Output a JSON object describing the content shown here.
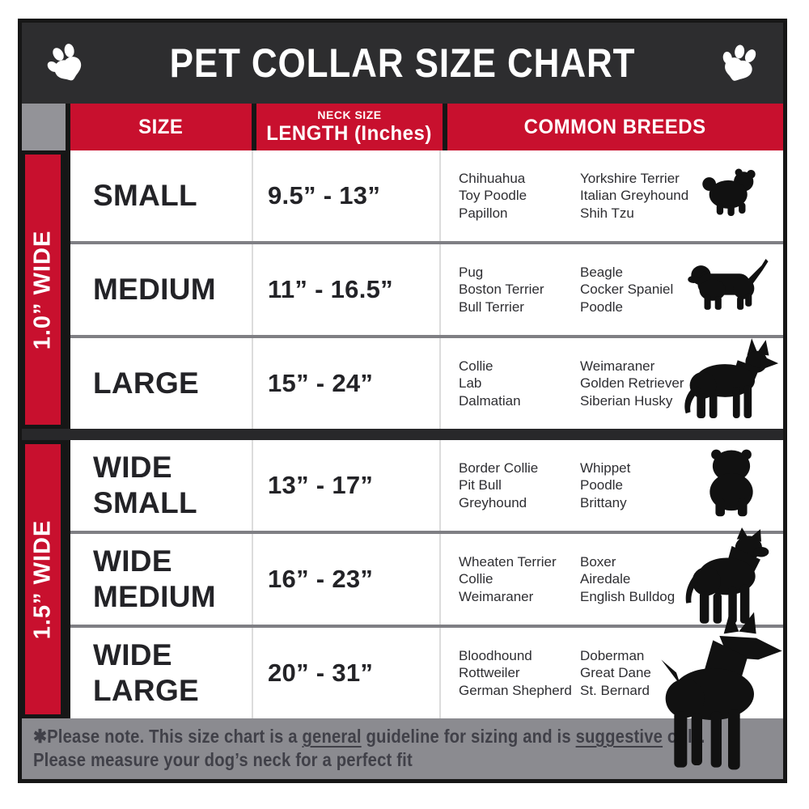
{
  "header": {
    "title": "PET COLLAR SIZE CHART"
  },
  "columns": {
    "size": "SIZE",
    "neck_small": "NECK SIZE",
    "neck_main": "LENGTH (Inches)",
    "breeds": "COMMON BREEDS"
  },
  "colors": {
    "title_bar": "#2d2d2f",
    "accent_red": "#c8102e",
    "corner_gray": "#939398",
    "footer_gray": "#8b8b90",
    "row_separator": "#7f7f84",
    "section_separator": "#28282a",
    "text_dark": "#232327",
    "border_black": "#161616"
  },
  "sections": [
    {
      "id": "1-0-wide",
      "label": "1.0” WIDE",
      "rows": [
        {
          "id": "small",
          "size_lines": [
            "SMALL"
          ],
          "range": "9.5” - 13”",
          "breeds_col1": [
            "Chihuahua",
            "Toy Poodle",
            "Papillon"
          ],
          "breeds_col2": [
            "Yorkshire Terrier",
            "Italian Greyhound",
            "Shih Tzu"
          ],
          "icon": "shih-tzu-dog-icon",
          "symbol": "dog-fluffy",
          "pos": "pos-r1"
        },
        {
          "id": "medium",
          "size_lines": [
            "MEDIUM"
          ],
          "range": "11” - 16.5”",
          "breeds_col1": [
            "Pug",
            "Boston Terrier",
            "Bull Terrier"
          ],
          "breeds_col2": [
            "Beagle",
            "Cocker Spaniel",
            "Poodle"
          ],
          "icon": "dachshund-dog-icon",
          "symbol": "dog-dachshund",
          "pos": "pos-r2"
        },
        {
          "id": "large",
          "size_lines": [
            "LARGE"
          ],
          "range": "15” - 24”",
          "breeds_col1": [
            "Collie",
            "Lab",
            "Dalmatian"
          ],
          "breeds_col2": [
            "Weimaraner",
            "Golden Retriever",
            "Siberian Husky"
          ],
          "icon": "german-shepherd-dog-icon",
          "symbol": "dog-shepherd",
          "pos": "pos-r3"
        }
      ]
    },
    {
      "id": "1-5-wide",
      "label": "1.5” WIDE",
      "rows": [
        {
          "id": "wide-small",
          "size_lines": [
            "WIDE",
            "SMALL"
          ],
          "range": "13” - 17”",
          "breeds_col1": [
            "Border Collie",
            "Pit Bull",
            "Greyhound"
          ],
          "breeds_col2": [
            "Whippet",
            "Poodle",
            "Brittany"
          ],
          "icon": "bulldog-dog-icon",
          "symbol": "dog-bulldog",
          "pos": "pos-r4"
        },
        {
          "id": "wide-medium",
          "size_lines": [
            "WIDE",
            "MEDIUM"
          ],
          "range": "16” - 23”",
          "breeds_col1": [
            "Wheaten Terrier",
            "Collie",
            "Weimaraner"
          ],
          "breeds_col2": [
            "Boxer",
            "Airedale",
            "English Bulldog"
          ],
          "icon": "pit-bull-dog-icon",
          "symbol": "dog-pitbull",
          "pos": "pos-r5"
        },
        {
          "id": "wide-large",
          "size_lines": [
            "WIDE",
            "LARGE"
          ],
          "range": "20” - 31”",
          "breeds_col1": [
            "Bloodhound",
            "Rottweiler",
            "German Shepherd"
          ],
          "breeds_col2": [
            "Doberman",
            "Great Dane",
            "St. Bernard"
          ],
          "icon": "doberman-dog-icon",
          "symbol": "dog-doberman",
          "pos": "pos-r6"
        }
      ]
    }
  ],
  "footer": {
    "note1_pre": "✱Please note. This size chart is a ",
    "note1_u1": "general",
    "note1_mid": " guideline for sizing and is ",
    "note1_u2": "suggestive",
    "note1_post": " only.",
    "note2": "Please measure your dog’s neck for a perfect fit"
  }
}
